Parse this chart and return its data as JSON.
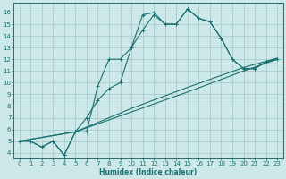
{
  "xlabel": "Humidex (Indice chaleur)",
  "xlim": [
    -0.5,
    23.5
  ],
  "ylim": [
    3.5,
    16.8
  ],
  "xticks": [
    0,
    1,
    2,
    3,
    4,
    5,
    6,
    7,
    8,
    9,
    10,
    11,
    12,
    13,
    14,
    15,
    16,
    17,
    18,
    19,
    20,
    21,
    22,
    23
  ],
  "yticks": [
    4,
    5,
    6,
    7,
    8,
    9,
    10,
    11,
    12,
    13,
    14,
    15,
    16
  ],
  "bg_color": "#cce8e8",
  "grid_color": "#aacccc",
  "line_color": "#1a7070",
  "line1_x": [
    0,
    1,
    2,
    3,
    4,
    5,
    6,
    7,
    8,
    9,
    10,
    11,
    12,
    13,
    14,
    15,
    16,
    17,
    18,
    19,
    20,
    21,
    22,
    23
  ],
  "line1_y": [
    5,
    5,
    4.5,
    5,
    3.8,
    5.8,
    5.8,
    9.7,
    12,
    12,
    13,
    15.8,
    16,
    15,
    15,
    16.3,
    15.5,
    15.2,
    13.8,
    12,
    11.2,
    11.2,
    11.8,
    12
  ],
  "line2_x": [
    0,
    1,
    2,
    3,
    4,
    5,
    6,
    7,
    8,
    9,
    10,
    11,
    12,
    13,
    14,
    15,
    16,
    17,
    18,
    19,
    20,
    21,
    22,
    23
  ],
  "line2_y": [
    5,
    5,
    4.5,
    5,
    3.8,
    5.8,
    7,
    8.5,
    9.5,
    10.0,
    13,
    14.5,
    15.8,
    15,
    15,
    16.3,
    15.5,
    15.2,
    13.8,
    12,
    11.2,
    11.2,
    11.8,
    12
  ],
  "line3_x": [
    0,
    5,
    10,
    15,
    20,
    23
  ],
  "line3_y": [
    5,
    5.8,
    7.5,
    9.2,
    11.0,
    12
  ],
  "line4_x": [
    0,
    5,
    10,
    15,
    20,
    23
  ],
  "line4_y": [
    5,
    5.8,
    7.8,
    9.6,
    11.3,
    12.1
  ]
}
